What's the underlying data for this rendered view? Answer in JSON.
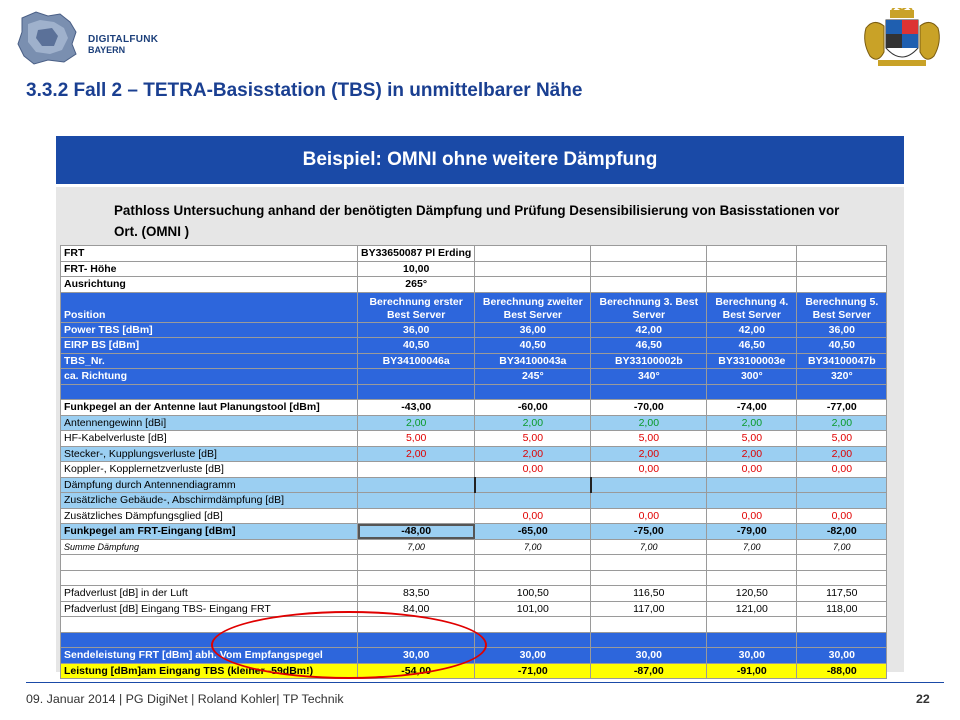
{
  "logo": {
    "line1": "DIGITALFUNK",
    "line2": "BAYERN"
  },
  "title": "3.3.2 Fall 2 – TETRA-Basisstation (TBS) in unmittelbarer Nähe",
  "banner": "Beispiel: OMNI ohne weitere Dämpfung",
  "intro": "Pathloss Untersuchung anhand der benötigten Dämpfung und Prüfung Desensibilisierung von Basisstationen vor Ort. (OMNI )",
  "sheet": {
    "frt": {
      "label": "FRT",
      "value": "BY33650087 Pl Erding"
    },
    "hoehe": {
      "label": "FRT- Höhe",
      "value": "10,00"
    },
    "ausrichtung": {
      "label": "Ausrichtung",
      "value": "265°"
    },
    "position": {
      "label": "Position",
      "cols": [
        "Berechnung erster Best Server",
        "Berechnung zweiter Best Server",
        "Berechnung 3. Best Server",
        "Berechnung 4. Best Server",
        "Berechnung 5. Best Server"
      ]
    },
    "power": {
      "label": "Power TBS [dBm]",
      "vals": [
        "36,00",
        "36,00",
        "42,00",
        "42,00",
        "36,00"
      ]
    },
    "eirp": {
      "label": "EIRP BS [dBm]",
      "vals": [
        "40,50",
        "40,50",
        "46,50",
        "46,50",
        "40,50"
      ]
    },
    "tbsnr": {
      "label": "TBS_Nr.",
      "vals": [
        "BY34100046a",
        "BY34100043a",
        "BY33100002b",
        "BY33100003e",
        "BY34100047b"
      ]
    },
    "richtung": {
      "label": "ca. Richtung",
      "vals": [
        "",
        "245°",
        "340°",
        "300°",
        "320°"
      ]
    },
    "funkpegel": {
      "label": "Funkpegel an der Antenne laut Planungstool [dBm]",
      "vals": [
        "-43,00",
        "-60,00",
        "-70,00",
        "-74,00",
        "-77,00"
      ]
    },
    "antennengewinn": {
      "label": "Antennengewinn [dBi]",
      "vals": [
        "2,00",
        "2,00",
        "2,00",
        "2,00",
        "2,00"
      ]
    },
    "kabel": {
      "label": "HF-Kabelverluste [dB]",
      "vals": [
        "5,00",
        "5,00",
        "5,00",
        "5,00",
        "5,00"
      ]
    },
    "stecker": {
      "label": "Stecker-, Kupplungsverluste [dB]",
      "vals": [
        "2,00",
        "2,00",
        "2,00",
        "2,00",
        "2,00"
      ]
    },
    "koppler": {
      "label": "Koppler-, Kopplernetzverluste [dB]",
      "vals": [
        "",
        "0,00",
        "0,00",
        "0,00",
        "0,00"
      ]
    },
    "daempfung_ant": {
      "label": "Dämpfung durch Antennendiagramm"
    },
    "gebaeude": {
      "label": "Zusätzliche Gebäude-, Abschirmdämpfung [dB]"
    },
    "zus_daempfung": {
      "label": "Zusätzliches Dämpfungsglied [dB]",
      "vals": [
        "",
        "0,00",
        "0,00",
        "0,00",
        "0,00"
      ]
    },
    "eingang": {
      "label": "Funkpegel am FRT-Eingang [dBm]",
      "vals": [
        "-48,00",
        "-65,00",
        "-75,00",
        "-79,00",
        "-82,00"
      ]
    },
    "summe": {
      "label": "Summe Dämpfung",
      "vals": [
        "7,00",
        "7,00",
        "7,00",
        "7,00",
        "7,00"
      ]
    },
    "pfad_luft": {
      "label": "Pfadverlust [dB] in der Luft",
      "vals": [
        "83,50",
        "100,50",
        "116,50",
        "120,50",
        "117,50"
      ]
    },
    "pfad_eingang": {
      "label": "Pfadverlust [dB] Eingang TBS- Eingang FRT",
      "vals": [
        "84,00",
        "101,00",
        "117,00",
        "121,00",
        "118,00"
      ]
    },
    "sendeleistung": {
      "label": "Sendeleistung FRT [dBm] abh. Vom Empfangspegel",
      "vals": [
        "30,00",
        "30,00",
        "30,00",
        "30,00",
        "30,00"
      ]
    },
    "leistung": {
      "label": "Leistung [dBm]am Eingang TBS (kleiner -59dBm!)",
      "vals": [
        "-54,00",
        "-71,00",
        "-87,00",
        "-91,00",
        "-88,00"
      ]
    }
  },
  "footer": "09. Januar 2014  | PG DigiNet | Roland Kohler| TP Technik",
  "page_number": "22"
}
